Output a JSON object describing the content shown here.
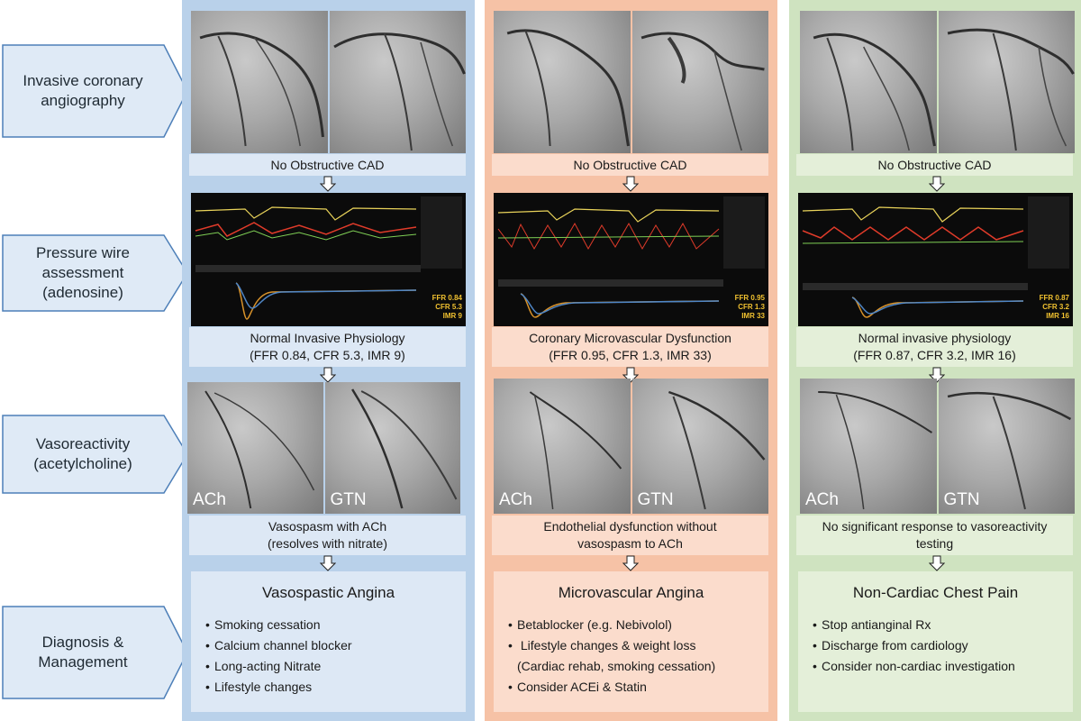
{
  "steps": [
    {
      "label": "Invasive coronary\nangiography"
    },
    {
      "label": "Pressure wire\nassessment\n(adenosine)"
    },
    {
      "label": "Vasoreactivity\n(acetylcholine)"
    },
    {
      "label": "Diagnosis &\nManagement"
    }
  ],
  "columns": [
    {
      "angiography_caption": "No Obstructive CAD",
      "monitor_values": {
        "ffr": "FFR 0.84",
        "cfr": "CFR 5.3",
        "imr": "IMR 9"
      },
      "physiology_caption_1": "Normal Invasive Physiology",
      "physiology_caption_2": "(FFR 0.84, CFR 5.3, IMR 9)",
      "vaso_tags": {
        "left": "ACh",
        "right": "GTN"
      },
      "vaso_caption_1": "Vasospasm with ACh",
      "vaso_caption_2": "(resolves with nitrate)",
      "diagnosis": "Vasospastic Angina",
      "management": [
        "Smoking cessation",
        "Calcium channel blocker",
        "Long-acting Nitrate",
        "Lifestyle changes"
      ]
    },
    {
      "angiography_caption": "No Obstructive CAD",
      "monitor_values": {
        "ffr": "FFR 0.95",
        "cfr": "CFR 1.3",
        "imr": "IMR 33"
      },
      "physiology_caption_1": "Coronary Microvascular Dysfunction",
      "physiology_caption_2": "(FFR 0.95, CFR 1.3, IMR 33)",
      "vaso_tags": {
        "left": "ACh",
        "right": "GTN"
      },
      "vaso_caption_1": "Endothelial dysfunction without",
      "vaso_caption_2": "vasospasm to ACh",
      "diagnosis": "Microvascular Angina",
      "management": [
        "Betablocker (e.g. Nebivolol)",
        " Lifestyle changes & weight loss",
        "(Cardiac rehab, smoking cessation)",
        "Consider ACEi & Statin"
      ]
    },
    {
      "angiography_caption": "No Obstructive CAD",
      "monitor_values": {
        "ffr": "FFR 0.87",
        "cfr": "CFR 3.2",
        "imr": "IMR 16"
      },
      "physiology_caption_1": "Normal invasive physiology",
      "physiology_caption_2": "(FFR 0.87, CFR 3.2, IMR 16)",
      "vaso_tags": {
        "left": "ACh",
        "right": "GTN"
      },
      "vaso_caption_1": "No significant response to vasoreactivity",
      "vaso_caption_2": "testing",
      "diagnosis": "Non-Cardiac Chest Pain",
      "management": [
        "Stop antianginal Rx",
        "Discharge from cardiology",
        "Consider non-cardiac investigation"
      ]
    }
  ],
  "colors": {
    "blue_col": "#b9d1ea",
    "orange_col": "#f6c2a6",
    "green_col": "#cfe3c0",
    "arrow_fill": "#dfeaf6",
    "arrow_stroke": "#4d7fb8"
  }
}
